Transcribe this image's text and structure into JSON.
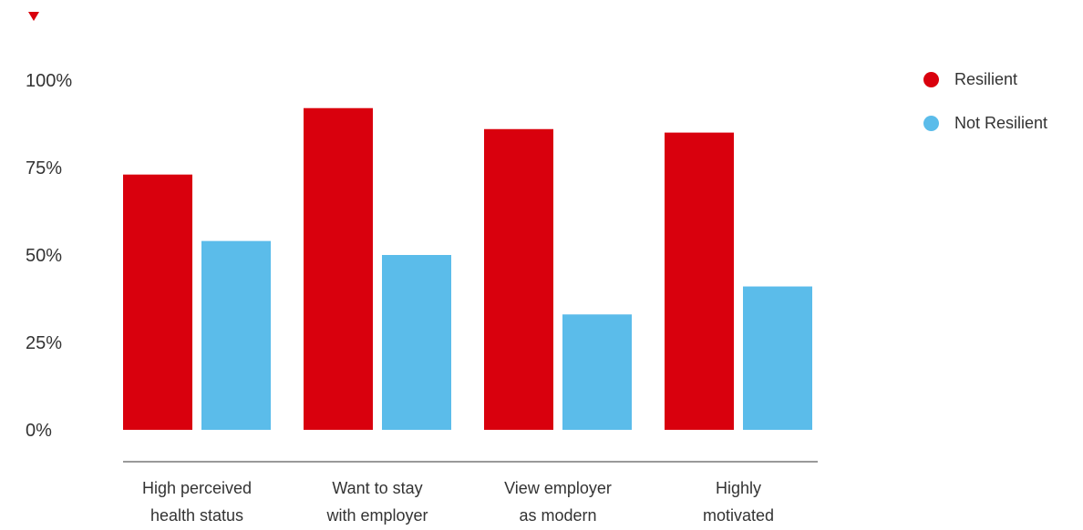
{
  "colors": {
    "resilient": "#d9000d",
    "not_resilient": "#5bbcea",
    "axis": "#333333"
  },
  "marker_icon": "triangle-down-icon",
  "legend": {
    "items": [
      {
        "label": "Resilient",
        "color": "#d9000d"
      },
      {
        "label": "Not Resilient",
        "color": "#5bbcea"
      }
    ]
  },
  "chart_data": {
    "type": "bar",
    "categories": [
      [
        "High perceived",
        "health status"
      ],
      [
        "Want to stay",
        "with employer"
      ],
      [
        "View employer",
        "as modern"
      ],
      [
        "Highly",
        "motivated"
      ]
    ],
    "series": [
      {
        "name": "Resilient",
        "values": [
          73,
          92,
          86,
          85
        ]
      },
      {
        "name": "Not Resilient",
        "values": [
          54,
          50,
          33,
          41
        ]
      }
    ],
    "yticks": [
      "0%",
      "25%",
      "50%",
      "75%",
      "100%"
    ],
    "ylim": [
      0,
      100
    ],
    "grid": false,
    "legend_position": "top-right"
  }
}
